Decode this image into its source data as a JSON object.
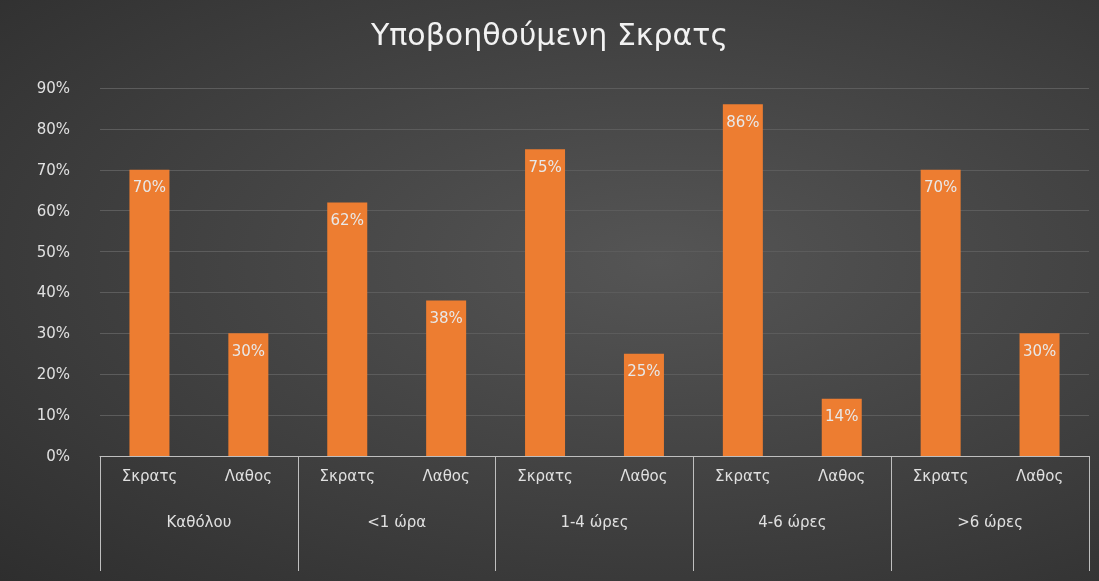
{
  "chart_data": {
    "type": "bar",
    "title": "Υποβοηθούμενη Σκρατς",
    "categories": [
      "Σκρατς",
      "Λαθος",
      "Σκρατς",
      "Λαθος",
      "Σκρατς",
      "Λαθος",
      "Σκρατς",
      "Λαθος",
      "Σκρατς",
      "Λαθος"
    ],
    "values": [
      70,
      30,
      62,
      38,
      75,
      25,
      86,
      14,
      70,
      30
    ],
    "value_labels": [
      "70%",
      "30%",
      "62%",
      "38%",
      "75%",
      "25%",
      "86%",
      "14%",
      "70%",
      "30%"
    ],
    "color": "#ed7d31",
    "ylim": [
      0,
      90
    ],
    "yticks": [
      {
        "value": 0,
        "label": "0%"
      },
      {
        "value": 10,
        "label": "10%"
      },
      {
        "value": 20,
        "label": "20%"
      },
      {
        "value": 30,
        "label": "30%"
      },
      {
        "value": 40,
        "label": "40%"
      },
      {
        "value": 50,
        "label": "50%"
      },
      {
        "value": 60,
        "label": "60%"
      },
      {
        "value": 70,
        "label": "70%"
      },
      {
        "value": 80,
        "label": "80%"
      },
      {
        "value": 90,
        "label": "90%"
      }
    ],
    "annotations": [
      "Καθόλου",
      "<1 ώρα",
      "1-4 ώρες",
      "4-6 ώρες",
      ">6 ώρες"
    ],
    "grid": "y"
  }
}
